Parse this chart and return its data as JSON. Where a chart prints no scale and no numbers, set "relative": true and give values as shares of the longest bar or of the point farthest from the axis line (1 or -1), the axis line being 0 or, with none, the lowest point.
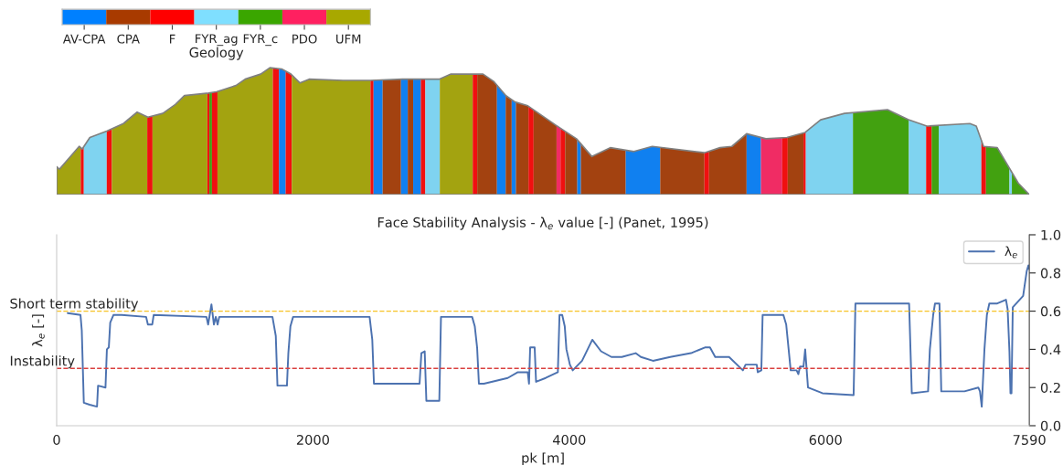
{
  "chart_data": [
    {
      "type": "other",
      "xlabel": "Geology",
      "categories": [
        "AV-CPA",
        "CPA",
        "F",
        "FYR_ag",
        "FYR_c",
        "PDO",
        "UFM"
      ],
      "colors": [
        "#0080ff",
        "#a83a00",
        "#ff0000",
        "#7fdfff",
        "#3aa600",
        "#ff2060",
        "#a8a800"
      ]
    },
    {
      "type": "area",
      "relative": true,
      "tick_labels": false,
      "xlim": [
        0,
        7590
      ],
      "x": [
        0,
        21,
        176,
        200,
        259,
        391,
        521,
        628,
        712,
        828,
        926,
        997,
        1185,
        1247,
        1399,
        1471,
        1592,
        1664,
        1756,
        1828,
        1899,
        1970,
        2235,
        2449,
        2699,
        2985,
        3077,
        3327,
        3413,
        3506,
        3577,
        3677,
        3891,
        4056,
        4177,
        4320,
        4505,
        4648,
        5055,
        5177,
        5269,
        5384,
        5534,
        5698,
        5841,
        5962,
        6148,
        6483,
        6647,
        6790,
        7126,
        7176,
        7233,
        7340,
        7504,
        7590
      ],
      "series": [
        {
          "color": "#808080",
          "values": [
            0.22,
            0.2,
            0.38,
            0.36,
            0.45,
            0.5,
            0.56,
            0.65,
            0.61,
            0.64,
            0.71,
            0.78,
            0.8,
            0.81,
            0.86,
            0.91,
            0.95,
            1.0,
            0.99,
            0.95,
            0.88,
            0.91,
            0.9,
            0.9,
            0.91,
            0.91,
            0.95,
            0.95,
            0.89,
            0.78,
            0.73,
            0.7,
            0.55,
            0.44,
            0.3,
            0.37,
            0.34,
            0.38,
            0.33,
            0.37,
            0.38,
            0.48,
            0.44,
            0.45,
            0.49,
            0.59,
            0.64,
            0.67,
            0.59,
            0.54,
            0.56,
            0.54,
            0.38,
            0.37,
            0.09,
            0.0
          ]
        }
      ],
      "bands": [
        {
          "axis": "x",
          "from": 0,
          "to": 188,
          "color": "#a8a800"
        },
        {
          "axis": "x",
          "from": 188,
          "to": 212,
          "color": "#ff0000"
        },
        {
          "axis": "x",
          "from": 212,
          "to": 391,
          "color": "#7fdfff"
        },
        {
          "axis": "x",
          "from": 391,
          "to": 431,
          "color": "#ff0000"
        },
        {
          "axis": "x",
          "from": 431,
          "to": 707,
          "color": "#a8a800"
        },
        {
          "axis": "x",
          "from": 707,
          "to": 748,
          "color": "#ff0000"
        },
        {
          "axis": "x",
          "from": 748,
          "to": 1176,
          "color": "#a8a800"
        },
        {
          "axis": "x",
          "from": 1176,
          "to": 1192,
          "color": "#ff0000"
        },
        {
          "axis": "x",
          "from": 1192,
          "to": 1212,
          "color": "#3aa600"
        },
        {
          "axis": "x",
          "from": 1212,
          "to": 1255,
          "color": "#ff0000"
        },
        {
          "axis": "x",
          "from": 1255,
          "to": 1687,
          "color": "#a8a800"
        },
        {
          "axis": "x",
          "from": 1687,
          "to": 1735,
          "color": "#ff0000"
        },
        {
          "axis": "x",
          "from": 1735,
          "to": 1787,
          "color": "#0080ff"
        },
        {
          "axis": "x",
          "from": 1787,
          "to": 1835,
          "color": "#ff0000"
        },
        {
          "axis": "x",
          "from": 1835,
          "to": 2449,
          "color": "#a8a800"
        },
        {
          "axis": "x",
          "from": 2449,
          "to": 2473,
          "color": "#ff0000"
        },
        {
          "axis": "x",
          "from": 2473,
          "to": 2544,
          "color": "#0080ff"
        },
        {
          "axis": "x",
          "from": 2544,
          "to": 2687,
          "color": "#a83a00"
        },
        {
          "axis": "x",
          "from": 2687,
          "to": 2740,
          "color": "#0080ff"
        },
        {
          "axis": "x",
          "from": 2740,
          "to": 2782,
          "color": "#a83a00"
        },
        {
          "axis": "x",
          "from": 2782,
          "to": 2842,
          "color": "#0080ff"
        },
        {
          "axis": "x",
          "from": 2842,
          "to": 2877,
          "color": "#ff0000"
        },
        {
          "axis": "x",
          "from": 2877,
          "to": 2990,
          "color": "#7fdfff"
        },
        {
          "axis": "x",
          "from": 2990,
          "to": 3247,
          "color": "#a8a800"
        },
        {
          "axis": "x",
          "from": 3247,
          "to": 3282,
          "color": "#ff0000"
        },
        {
          "axis": "x",
          "from": 3282,
          "to": 3436,
          "color": "#a83a00"
        },
        {
          "axis": "x",
          "from": 3436,
          "to": 3504,
          "color": "#0080ff"
        },
        {
          "axis": "x",
          "from": 3504,
          "to": 3551,
          "color": "#a83a00"
        },
        {
          "axis": "x",
          "from": 3551,
          "to": 3584,
          "color": "#0080ff"
        },
        {
          "axis": "x",
          "from": 3584,
          "to": 3682,
          "color": "#a83a00"
        },
        {
          "axis": "x",
          "from": 3682,
          "to": 3722,
          "color": "#ff0000"
        },
        {
          "axis": "x",
          "from": 3722,
          "to": 3901,
          "color": "#a83a00"
        },
        {
          "axis": "x",
          "from": 3901,
          "to": 3932,
          "color": "#ff2060"
        },
        {
          "axis": "x",
          "from": 3932,
          "to": 3968,
          "color": "#ff0000"
        },
        {
          "axis": "x",
          "from": 3968,
          "to": 4063,
          "color": "#a83a00"
        },
        {
          "axis": "x",
          "from": 4063,
          "to": 4091,
          "color": "#0080ff"
        },
        {
          "axis": "x",
          "from": 4091,
          "to": 4441,
          "color": "#a83a00"
        },
        {
          "axis": "x",
          "from": 4441,
          "to": 4710,
          "color": "#0080ff"
        },
        {
          "axis": "x",
          "from": 4710,
          "to": 5055,
          "color": "#a83a00"
        },
        {
          "axis": "x",
          "from": 5055,
          "to": 5091,
          "color": "#ff0000"
        },
        {
          "axis": "x",
          "from": 5091,
          "to": 5384,
          "color": "#a83a00"
        },
        {
          "axis": "x",
          "from": 5384,
          "to": 5496,
          "color": "#0080ff"
        },
        {
          "axis": "x",
          "from": 5496,
          "to": 5662,
          "color": "#ff2060"
        },
        {
          "axis": "x",
          "from": 5662,
          "to": 5705,
          "color": "#ff0000"
        },
        {
          "axis": "x",
          "from": 5705,
          "to": 5828,
          "color": "#a83a00"
        },
        {
          "axis": "x",
          "from": 5828,
          "to": 5846,
          "color": "#ff0000"
        },
        {
          "axis": "x",
          "from": 5846,
          "to": 6214,
          "color": "#7fdfff"
        },
        {
          "axis": "x",
          "from": 6214,
          "to": 6650,
          "color": "#3aa600"
        },
        {
          "axis": "x",
          "from": 6650,
          "to": 6785,
          "color": "#7fdfff"
        },
        {
          "axis": "x",
          "from": 6785,
          "to": 6828,
          "color": "#ff0000"
        },
        {
          "axis": "x",
          "from": 6828,
          "to": 6883,
          "color": "#3aa600"
        },
        {
          "axis": "x",
          "from": 6883,
          "to": 7216,
          "color": "#7fdfff"
        },
        {
          "axis": "x",
          "from": 7216,
          "to": 7252,
          "color": "#ff0000"
        },
        {
          "axis": "x",
          "from": 7252,
          "to": 7435,
          "color": "#3aa600"
        },
        {
          "axis": "x",
          "from": 7435,
          "to": 7454,
          "color": "#7fdfff"
        },
        {
          "axis": "x",
          "from": 7454,
          "to": 7590,
          "color": "#3aa600"
        }
      ]
    },
    {
      "type": "line",
      "title": "Face Stability Analysis - λ$_{e}$ value [-] (Panet, 1995)",
      "xlabel": "pk [m]",
      "ylabel": "λ$_{e}$ [-]",
      "legend": "top right",
      "xlim": [
        0,
        7590
      ],
      "xticks": [
        0,
        2000,
        4000,
        6000,
        7590
      ],
      "ylim": [
        0,
        1
      ],
      "yticks": [
        {
          "value": 0,
          "label": "0.0"
        },
        {
          "value": 0.2,
          "label": "0.2"
        },
        {
          "value": 0.4,
          "label": "0.4"
        },
        {
          "value": 0.6,
          "label": "0.6"
        },
        {
          "value": 0.8,
          "label": "0.8"
        },
        {
          "value": 1,
          "label": "1.0"
        }
      ],
      "ref_lines": [
        {
          "axis": "y",
          "value": 0.6,
          "label": "Short term stability",
          "color": "#f7c325",
          "line_style": "dashed"
        },
        {
          "axis": "y",
          "value": 0.3,
          "label": "Instability",
          "color": "#d9413f",
          "line_style": "dashed"
        }
      ],
      "x": [
        86,
        186,
        196,
        212,
        257,
        315,
        323,
        381,
        392,
        407,
        418,
        443,
        507,
        698,
        712,
        746,
        757,
        1169,
        1182,
        1208,
        1227,
        1242,
        1256,
        1269,
        1684,
        1710,
        1723,
        1797,
        1808,
        1824,
        1845,
        2442,
        2463,
        2476,
        2832,
        2846,
        2872,
        2885,
        2986,
        2999,
        3242,
        3263,
        3281,
        3295,
        3334,
        3520,
        3599,
        3676,
        3686,
        3695,
        3730,
        3741,
        3816,
        3911,
        3924,
        3945,
        3965,
        3978,
        4005,
        4027,
        4100,
        4180,
        4248,
        4329,
        4410,
        4518,
        4559,
        4653,
        4788,
        4950,
        5059,
        5098,
        5139,
        5247,
        5355,
        5376,
        5463,
        5471,
        5499,
        5509,
        5671,
        5693,
        5712,
        5728,
        5774,
        5788,
        5801,
        5828,
        5841,
        5863,
        5976,
        6219,
        6233,
        6652,
        6673,
        6800,
        6814,
        6840,
        6854,
        6889,
        6903,
        7084,
        7192,
        7205,
        7219,
        7240,
        7259,
        7278,
        7340,
        7408,
        7421,
        7435,
        7443,
        7451,
        7461,
        7542,
        7570,
        7583,
        7590
      ],
      "series": [
        {
          "name": "λ$_{e}$",
          "color": "#4c72b0",
          "values": [
            0.59,
            0.58,
            0.5,
            0.12,
            0.11,
            0.1,
            0.21,
            0.2,
            0.4,
            0.41,
            0.54,
            0.58,
            0.58,
            0.57,
            0.53,
            0.53,
            0.58,
            0.57,
            0.53,
            0.635,
            0.53,
            0.57,
            0.53,
            0.57,
            0.57,
            0.47,
            0.21,
            0.21,
            0.38,
            0.52,
            0.57,
            0.57,
            0.45,
            0.22,
            0.22,
            0.38,
            0.39,
            0.13,
            0.13,
            0.57,
            0.57,
            0.52,
            0.41,
            0.22,
            0.22,
            0.25,
            0.28,
            0.28,
            0.22,
            0.41,
            0.41,
            0.23,
            0.25,
            0.28,
            0.58,
            0.58,
            0.52,
            0.4,
            0.32,
            0.29,
            0.34,
            0.45,
            0.39,
            0.36,
            0.36,
            0.38,
            0.36,
            0.34,
            0.36,
            0.38,
            0.41,
            0.41,
            0.36,
            0.36,
            0.29,
            0.32,
            0.32,
            0.28,
            0.29,
            0.58,
            0.58,
            0.53,
            0.4,
            0.29,
            0.29,
            0.27,
            0.31,
            0.31,
            0.4,
            0.2,
            0.17,
            0.16,
            0.64,
            0.64,
            0.17,
            0.18,
            0.4,
            0.58,
            0.64,
            0.64,
            0.18,
            0.18,
            0.2,
            0.18,
            0.1,
            0.4,
            0.58,
            0.64,
            0.64,
            0.66,
            0.61,
            0.39,
            0.17,
            0.17,
            0.62,
            0.68,
            0.81,
            0.84,
            0.82
          ]
        }
      ]
    }
  ]
}
